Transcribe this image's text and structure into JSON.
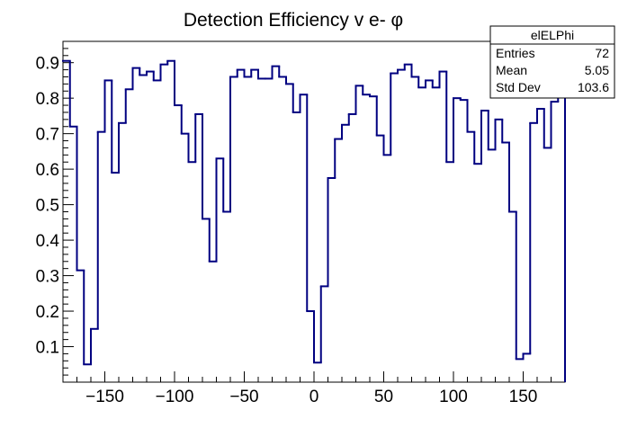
{
  "chart_data": {
    "type": "histogram",
    "title": "Detection Efficiency v e- φ",
    "xlabel": "",
    "ylabel": "",
    "xlim": [
      -180,
      180
    ],
    "ylim": [
      0,
      0.96
    ],
    "x_ticks": [
      -150,
      -100,
      -50,
      0,
      50,
      100,
      150
    ],
    "x_tick_labels": [
      "−150",
      "−100",
      "−50",
      "0",
      "50",
      "100",
      "150"
    ],
    "y_ticks": [
      0.1,
      0.2,
      0.3,
      0.4,
      0.5,
      0.6,
      0.7,
      0.8,
      0.9
    ],
    "y_tick_labels": [
      "0.1",
      "0.2",
      "0.3",
      "0.4",
      "0.5",
      "0.6",
      "0.7",
      "0.8",
      "0.9"
    ],
    "bin_width": 5,
    "bin_edges_start": -180,
    "line_color": "#000080",
    "series": [
      {
        "name": "elELPhi",
        "values": [
          0.905,
          0.72,
          0.315,
          0.05,
          0.15,
          0.705,
          0.85,
          0.59,
          0.73,
          0.825,
          0.885,
          0.865,
          0.875,
          0.85,
          0.895,
          0.905,
          0.78,
          0.7,
          0.62,
          0.755,
          0.46,
          0.34,
          0.63,
          0.48,
          0.86,
          0.88,
          0.86,
          0.88,
          0.855,
          0.855,
          0.89,
          0.86,
          0.84,
          0.76,
          0.81,
          0.2,
          0.055,
          0.27,
          0.575,
          0.685,
          0.725,
          0.755,
          0.835,
          0.81,
          0.805,
          0.695,
          0.64,
          0.87,
          0.88,
          0.895,
          0.86,
          0.83,
          0.85,
          0.83,
          0.875,
          0.62,
          0.8,
          0.795,
          0.705,
          0.615,
          0.765,
          0.655,
          0.74,
          0.675,
          0.48,
          0.065,
          0.08,
          0.73,
          0.77,
          0.66,
          0.79,
          0.805
        ]
      }
    ],
    "stats_box": {
      "title": "elELPhi",
      "rows": [
        {
          "label": "Entries",
          "value": "72"
        },
        {
          "label": "Mean",
          "value": "5.05"
        },
        {
          "label": "Std Dev",
          "value": "103.6"
        }
      ]
    }
  }
}
